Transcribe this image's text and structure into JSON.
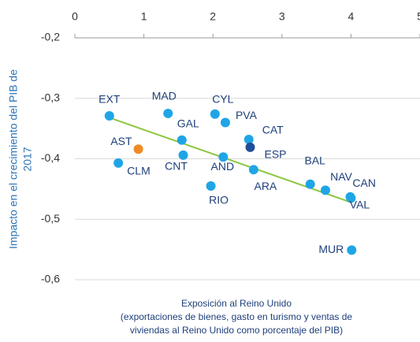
{
  "chart_data": {
    "type": "scatter",
    "x_label": [
      "Exposición al Reino Unido",
      "(exportaciones de bienes, gasto en turismo y ventas de",
      "viviendas al Reino Unido como porcentaje del PIB)"
    ],
    "y_label": [
      "Impacto en el crecimiento del PIB de",
      "2017"
    ],
    "xlim": [
      0,
      5
    ],
    "xticks": [
      0,
      1,
      2,
      3,
      4,
      5
    ],
    "ylim": [
      -0.6,
      -0.2
    ],
    "yticks": [
      {
        "value": -0.2,
        "label": "-0,2"
      },
      {
        "value": -0.3,
        "label": "-0,3"
      },
      {
        "value": -0.4,
        "label": "-0,4"
      },
      {
        "value": -0.5,
        "label": "-0,5"
      },
      {
        "value": -0.6,
        "label": "-0,6"
      }
    ],
    "grid": true,
    "points": {
      "labels": [
        "EXT",
        "AST",
        "CLM",
        "MAD",
        "GAL",
        "CNT",
        "CYL",
        "PVA",
        "AND",
        "RIO",
        "CAT",
        "ESP",
        "ARA",
        "BAL",
        "NAV",
        "CAN",
        "VAL",
        "MUR"
      ],
      "x": [
        0.5,
        0.92,
        0.63,
        1.35,
        1.55,
        1.57,
        2.03,
        2.18,
        2.15,
        1.97,
        2.52,
        2.54,
        2.59,
        3.41,
        3.63,
        4.0,
        3.99,
        4.01
      ],
      "y": [
        -0.329,
        -0.384,
        -0.407,
        -0.325,
        -0.369,
        -0.394,
        -0.326,
        -0.34,
        -0.397,
        -0.445,
        -0.368,
        -0.381,
        -0.418,
        -0.442,
        -0.452,
        -0.465,
        -0.463,
        -0.551
      ],
      "colors": [
        "#1fa5e6",
        "#f08a24",
        "#1fa5e6",
        "#1fa5e6",
        "#1fa5e6",
        "#1fa5e6",
        "#1fa5e6",
        "#1fa5e6",
        "#1fa5e6",
        "#1fa5e6",
        "#1fa5e6",
        "#1f4e99",
        "#1fa5e6",
        "#1fa5e6",
        "#1fa5e6",
        "#1fa5e6",
        "#1fa5e6",
        "#1fa5e6"
      ]
    },
    "trendline": {
      "x": [
        0.5,
        4.0
      ],
      "y": [
        -0.332,
        -0.472
      ],
      "color": "#8cc63f"
    }
  }
}
